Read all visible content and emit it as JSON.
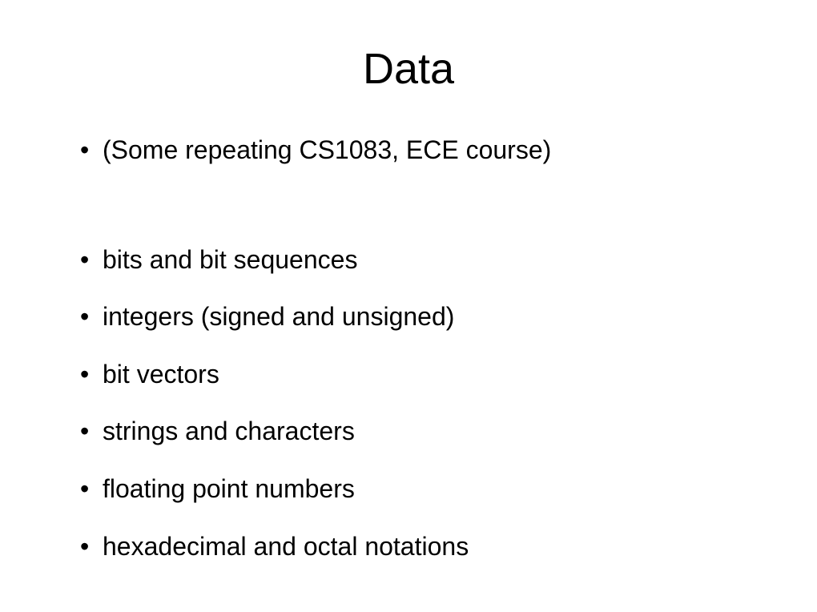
{
  "slide": {
    "title": "Data",
    "bullets": [
      "(Some repeating CS1083, ECE course)",
      "bits and bit sequences",
      "integers (signed and unsigned)",
      "bit vectors",
      "strings and characters",
      "floating point numbers",
      "hexadecimal and octal notations"
    ],
    "title_fontsize": 54,
    "bullet_fontsize": 32,
    "background_color": "#ffffff",
    "text_color": "#000000"
  }
}
